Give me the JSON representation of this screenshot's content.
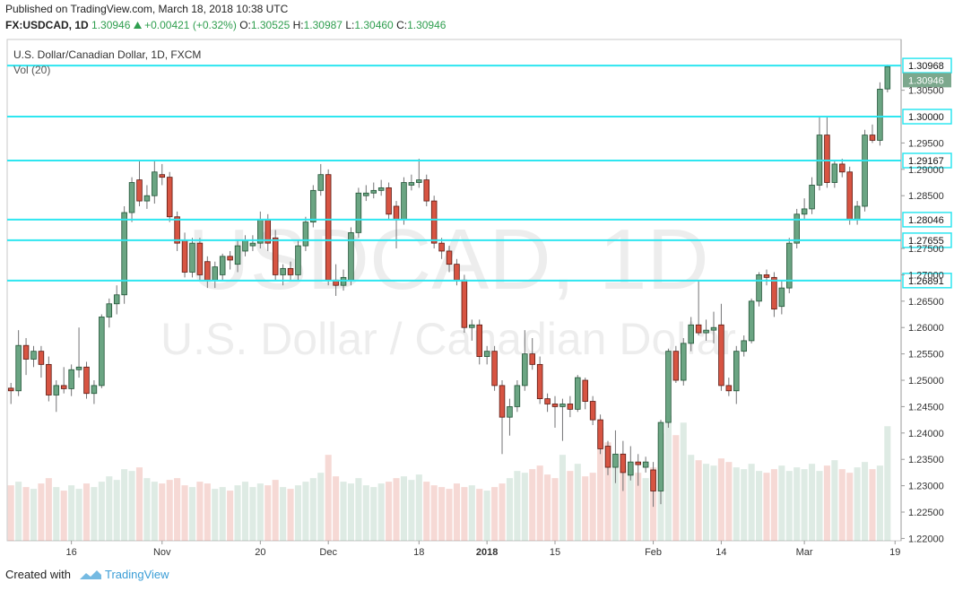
{
  "header": {
    "published": "Published on TradingView.com, March 18, 2018 10:38 UTC",
    "symbol": "FX:USDCAD, 1D",
    "last": "1.30946",
    "change": "+0.00421 (+0.32%)",
    "o_label": "O:",
    "open": "1.30525",
    "h_label": "H:",
    "high": "1.30987",
    "l_label": "L:",
    "low": "1.30460",
    "c_label": "C:",
    "close": "1.30946"
  },
  "chart_data": {
    "type": "candlestick",
    "title": "U.S. Dollar/Canadian Dollar, 1D, FXCM",
    "indicator": "Vol (20)",
    "watermark": [
      "USDCAD, 1D",
      "U.S. Dollar / Canadian Dollar"
    ],
    "up_color": "#6ba583",
    "down_color": "#d75442",
    "line_color": "#2ee6f0",
    "ylim": [
      1.21956,
      1.31463
    ],
    "yticks": [
      {
        "value": 1.22,
        "label": "1.22000"
      },
      {
        "value": 1.225,
        "label": "1.22500"
      },
      {
        "value": 1.23,
        "label": "1.23000"
      },
      {
        "value": 1.235,
        "label": "1.23500"
      },
      {
        "value": 1.24,
        "label": "1.24000"
      },
      {
        "value": 1.245,
        "label": "1.24500"
      },
      {
        "value": 1.25,
        "label": "1.25000"
      },
      {
        "value": 1.255,
        "label": "1.25500"
      },
      {
        "value": 1.26,
        "label": "1.26000"
      },
      {
        "value": 1.265,
        "label": "1.26500"
      },
      {
        "value": 1.27,
        "label": "1.27000"
      },
      {
        "value": 1.275,
        "label": "1.27500"
      },
      {
        "value": 1.285,
        "label": "1.28500"
      },
      {
        "value": 1.29,
        "label": "1.29000"
      },
      {
        "value": 1.295,
        "label": "1.29500"
      },
      {
        "value": 1.305,
        "label": "1.30500"
      }
    ],
    "xlim": [
      -0.5,
      117.8
    ],
    "xticks": [
      {
        "value": 8,
        "label": "16"
      },
      {
        "value": 20,
        "label": "Nov"
      },
      {
        "value": 33,
        "label": "20"
      },
      {
        "value": 42,
        "label": "Dec"
      },
      {
        "value": 54,
        "label": "18"
      },
      {
        "value": 63,
        "label": "2018"
      },
      {
        "value": 72,
        "label": "15"
      },
      {
        "value": 85,
        "label": "Feb"
      },
      {
        "value": 94,
        "label": "14"
      },
      {
        "value": 105,
        "label": "Mar"
      },
      {
        "value": 117,
        "label": "19"
      }
    ],
    "lines": [
      {
        "value": 1.30968,
        "label": "1.30968"
      },
      {
        "value": 1.3,
        "label": "1.30000"
      },
      {
        "value": 1.29167,
        "label": "1.29167"
      },
      {
        "value": 1.28046,
        "label": "1.28046"
      },
      {
        "value": 1.27655,
        "label": "1.27655"
      },
      {
        "value": 1.26891,
        "label": "1.26891"
      }
    ],
    "last_price": {
      "value": 1.30946,
      "label": "1.30946"
    },
    "candles": [
      [
        1.2485,
        1.2495,
        1.2455,
        1.248
      ],
      [
        1.248,
        1.2595,
        1.247,
        1.2566
      ],
      [
        1.2566,
        1.258,
        1.251,
        1.254
      ],
      [
        1.254,
        1.2565,
        1.2525,
        1.2555
      ],
      [
        1.2555,
        1.2565,
        1.2505,
        1.253
      ],
      [
        1.253,
        1.2545,
        1.246,
        1.2472
      ],
      [
        1.2472,
        1.25,
        1.244,
        1.249
      ],
      [
        1.249,
        1.2525,
        1.2475,
        1.2484
      ],
      [
        1.2484,
        1.253,
        1.247,
        1.252
      ],
      [
        1.252,
        1.26,
        1.2505,
        1.2525
      ],
      [
        1.2525,
        1.2535,
        1.2465,
        1.2475
      ],
      [
        1.2475,
        1.25,
        1.2455,
        1.249
      ],
      [
        1.249,
        1.2625,
        1.2485,
        1.262
      ],
      [
        1.262,
        1.2655,
        1.26,
        1.2645
      ],
      [
        1.2645,
        1.268,
        1.2625,
        1.2662
      ],
      [
        1.2662,
        1.283,
        1.2645,
        1.2818
      ],
      [
        1.2818,
        1.2885,
        1.28,
        1.2875
      ],
      [
        1.288,
        1.2915,
        1.283,
        1.284
      ],
      [
        1.284,
        1.287,
        1.2825,
        1.285
      ],
      [
        1.285,
        1.2915,
        1.2835,
        1.2895
      ],
      [
        1.289,
        1.291,
        1.287,
        1.2885
      ],
      [
        1.2885,
        1.2895,
        1.28,
        1.281
      ],
      [
        1.281,
        1.282,
        1.2745,
        1.276
      ],
      [
        1.2765,
        1.278,
        1.2695,
        1.2705
      ],
      [
        1.2705,
        1.277,
        1.2695,
        1.276
      ],
      [
        1.276,
        1.277,
        1.269,
        1.27
      ],
      [
        1.2725,
        1.2735,
        1.2675,
        1.269
      ],
      [
        1.269,
        1.2725,
        1.2675,
        1.2715
      ],
      [
        1.27,
        1.274,
        1.269,
        1.2735
      ],
      [
        1.2735,
        1.2745,
        1.271,
        1.2728
      ],
      [
        1.272,
        1.2765,
        1.2705,
        1.2755
      ],
      [
        1.2745,
        1.2775,
        1.2735,
        1.2765
      ],
      [
        1.2755,
        1.2775,
        1.2745,
        1.276
      ],
      [
        1.276,
        1.282,
        1.275,
        1.2805
      ],
      [
        1.2805,
        1.2815,
        1.2745,
        1.276
      ],
      [
        1.277,
        1.2785,
        1.269,
        1.27
      ],
      [
        1.27,
        1.272,
        1.268,
        1.2712
      ],
      [
        1.2712,
        1.2725,
        1.269,
        1.27
      ],
      [
        1.27,
        1.2765,
        1.269,
        1.2755
      ],
      [
        1.2755,
        1.281,
        1.2745,
        1.28
      ],
      [
        1.28,
        1.287,
        1.279,
        1.286
      ],
      [
        1.286,
        1.291,
        1.285,
        1.289
      ],
      [
        1.289,
        1.29,
        1.268,
        1.269
      ],
      [
        1.269,
        1.272,
        1.266,
        1.268
      ],
      [
        1.268,
        1.271,
        1.267,
        1.2695
      ],
      [
        1.269,
        1.279,
        1.268,
        1.278
      ],
      [
        1.278,
        1.2865,
        1.277,
        1.2855
      ],
      [
        1.285,
        1.287,
        1.284,
        1.2855
      ],
      [
        1.2855,
        1.2875,
        1.2845,
        1.286
      ],
      [
        1.286,
        1.288,
        1.285,
        1.2865
      ],
      [
        1.2865,
        1.2875,
        1.2805,
        1.2815
      ],
      [
        1.283,
        1.284,
        1.275,
        1.2805
      ],
      [
        1.2805,
        1.2885,
        1.2795,
        1.2875
      ],
      [
        1.287,
        1.289,
        1.286,
        1.2875
      ],
      [
        1.2875,
        1.292,
        1.2865,
        1.288
      ],
      [
        1.288,
        1.289,
        1.283,
        1.284
      ],
      [
        1.284,
        1.285,
        1.275,
        1.276
      ],
      [
        1.276,
        1.277,
        1.273,
        1.2745
      ],
      [
        1.2745,
        1.2755,
        1.2705,
        1.272
      ],
      [
        1.272,
        1.273,
        1.268,
        1.269
      ],
      [
        1.269,
        1.27,
        1.259,
        1.26
      ],
      [
        1.26,
        1.2615,
        1.2575,
        1.2605
      ],
      [
        1.2605,
        1.2615,
        1.253,
        1.2545
      ],
      [
        1.2545,
        1.2565,
        1.253,
        1.2555
      ],
      [
        1.2555,
        1.2565,
        1.248,
        1.249
      ],
      [
        1.249,
        1.25,
        1.236,
        1.243
      ],
      [
        1.243,
        1.2465,
        1.2395,
        1.245
      ],
      [
        1.245,
        1.25,
        1.244,
        1.249
      ],
      [
        1.249,
        1.2595,
        1.248,
        1.255
      ],
      [
        1.255,
        1.258,
        1.252,
        1.253
      ],
      [
        1.253,
        1.2545,
        1.2455,
        1.2465
      ],
      [
        1.2465,
        1.2475,
        1.244,
        1.2455
      ],
      [
        1.2455,
        1.247,
        1.241,
        1.245
      ],
      [
        1.245,
        1.2465,
        1.2385,
        1.2455
      ],
      [
        1.2455,
        1.247,
        1.243,
        1.2445
      ],
      [
        1.2445,
        1.251,
        1.244,
        1.2505
      ],
      [
        1.25,
        1.2505,
        1.2445,
        1.246
      ],
      [
        1.246,
        1.247,
        1.2415,
        1.2425
      ],
      [
        1.2425,
        1.2435,
        1.236,
        1.237
      ],
      [
        1.2375,
        1.2385,
        1.232,
        1.2335
      ],
      [
        1.2335,
        1.2405,
        1.2305,
        1.236
      ],
      [
        1.236,
        1.2385,
        1.229,
        1.2325
      ],
      [
        1.232,
        1.2375,
        1.231,
        1.2345
      ],
      [
        1.2345,
        1.236,
        1.23,
        1.234
      ],
      [
        1.2335,
        1.2355,
        1.2325,
        1.2345
      ],
      [
        1.233,
        1.2345,
        1.226,
        1.229
      ],
      [
        1.229,
        1.2425,
        1.2265,
        1.242
      ],
      [
        1.242,
        1.256,
        1.241,
        1.2555
      ],
      [
        1.2555,
        1.2565,
        1.2495,
        1.25
      ],
      [
        1.25,
        1.258,
        1.249,
        1.257
      ],
      [
        1.257,
        1.262,
        1.2555,
        1.2605
      ],
      [
        1.2605,
        1.269,
        1.2585,
        1.259
      ],
      [
        1.259,
        1.2615,
        1.2575,
        1.2595
      ],
      [
        1.2595,
        1.263,
        1.257,
        1.26
      ],
      [
        1.2605,
        1.2645,
        1.248,
        1.249
      ],
      [
        1.249,
        1.2505,
        1.247,
        1.248
      ],
      [
        1.248,
        1.2565,
        1.2455,
        1.2555
      ],
      [
        1.2555,
        1.2585,
        1.2545,
        1.2575
      ],
      [
        1.2575,
        1.2655,
        1.257,
        1.265
      ],
      [
        1.265,
        1.2705,
        1.264,
        1.27
      ],
      [
        1.27,
        1.271,
        1.268,
        1.2695
      ],
      [
        1.2695,
        1.2705,
        1.262,
        1.2635
      ],
      [
        1.264,
        1.269,
        1.2625,
        1.2675
      ],
      [
        1.2675,
        1.277,
        1.2665,
        1.276
      ],
      [
        1.276,
        1.2825,
        1.275,
        1.2815
      ],
      [
        1.2815,
        1.2845,
        1.2805,
        1.2825
      ],
      [
        1.2825,
        1.2885,
        1.2815,
        1.287
      ],
      [
        1.287,
        1.3,
        1.286,
        1.2965
      ],
      [
        1.2965,
        1.3,
        1.2865,
        1.2875
      ],
      [
        1.2875,
        1.2915,
        1.2865,
        1.291
      ],
      [
        1.291,
        1.292,
        1.2885,
        1.2895
      ],
      [
        1.2895,
        1.2905,
        1.2795,
        1.2805
      ],
      [
        1.2805,
        1.284,
        1.2795,
        1.283
      ],
      [
        1.283,
        1.2975,
        1.282,
        1.2965
      ],
      [
        1.2965,
        1.2985,
        1.295,
        1.2955
      ],
      [
        1.2955,
        1.3065,
        1.2945,
        1.3052
      ],
      [
        1.30525,
        1.30987,
        1.3046,
        1.30946
      ]
    ],
    "vlim": [
      0,
      560
    ],
    "volume": [
      62,
      66,
      60,
      58,
      64,
      70,
      60,
      56,
      62,
      58,
      64,
      60,
      66,
      72,
      68,
      80,
      78,
      82,
      70,
      66,
      64,
      68,
      70,
      62,
      60,
      66,
      64,
      58,
      60,
      56,
      62,
      66,
      60,
      64,
      62,
      68,
      60,
      58,
      62,
      66,
      70,
      76,
      96,
      72,
      66,
      64,
      70,
      62,
      60,
      64,
      66,
      70,
      72,
      68,
      74,
      66,
      62,
      60,
      58,
      64,
      60,
      62,
      58,
      56,
      60,
      64,
      70,
      78,
      76,
      80,
      84,
      74,
      70,
      96,
      78,
      86,
      72,
      76,
      126,
      110,
      90,
      84,
      80,
      76,
      70,
      82,
      120,
      140,
      118,
      132,
      96,
      90,
      86,
      84,
      92,
      88,
      82,
      80,
      86,
      78,
      76,
      80,
      84,
      78,
      82,
      80,
      86,
      78,
      84,
      90,
      80,
      76,
      82,
      88,
      80,
      84,
      128
    ]
  },
  "footer": {
    "created": "Created with",
    "brand": "TradingView"
  }
}
